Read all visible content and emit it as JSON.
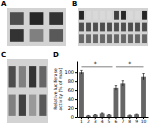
{
  "chart_data": [
    {
      "type": "heatmap",
      "title": "A",
      "cells": [
        [
          0.3,
          0.15,
          0.2
        ],
        [
          0.2,
          0.5,
          0.35
        ]
      ],
      "zlim": [
        0,
        1
      ]
    },
    {
      "type": "heatmap",
      "title": "B",
      "cells": [
        [
          0.85,
          0.15,
          0.15,
          0.15,
          0.15,
          0.75,
          0.85,
          0.15,
          0.15,
          0.85
        ],
        [
          0.7,
          0.7,
          0.7,
          0.7,
          0.7,
          0.7,
          0.7,
          0.7,
          0.7,
          0.7
        ],
        [
          0.6,
          0.6,
          0.6,
          0.6,
          0.6,
          0.6,
          0.6,
          0.6,
          0.6,
          0.6
        ]
      ],
      "zlim": [
        1,
        0
      ]
    },
    {
      "type": "heatmap",
      "title": "C",
      "cells": [
        [
          0.3,
          0.5,
          0.2,
          0.4
        ],
        [
          0.5,
          0.25,
          0.6,
          0.35
        ]
      ],
      "zlim": [
        0,
        1
      ]
    },
    {
      "type": "bar",
      "title": "D",
      "categories": [
        "1",
        "2",
        "3",
        "4",
        "5",
        "6",
        "7",
        "8",
        "9",
        "10"
      ],
      "values": [
        100,
        3,
        5,
        8,
        5,
        65,
        75,
        4,
        6,
        90
      ],
      "error_bars": [
        4,
        0.5,
        0.5,
        1,
        0.5,
        5,
        6,
        0.5,
        0.5,
        7
      ],
      "color": "#666666",
      "ylabel": "Relative luciferase\nactivity (% of max)",
      "ylim": [
        0,
        125
      ],
      "yticks": [
        0,
        20,
        40,
        60,
        80,
        100
      ],
      "brackets": [
        {
          "from": 0,
          "to": 4.5,
          "y": 112
        },
        {
          "from": 5,
          "to": 9,
          "y": 112
        }
      ],
      "annotations": [
        {
          "text": "*",
          "x": 2.0,
          "y": 114
        },
        {
          "text": "*",
          "x": 7.0,
          "y": 114
        }
      ]
    }
  ]
}
